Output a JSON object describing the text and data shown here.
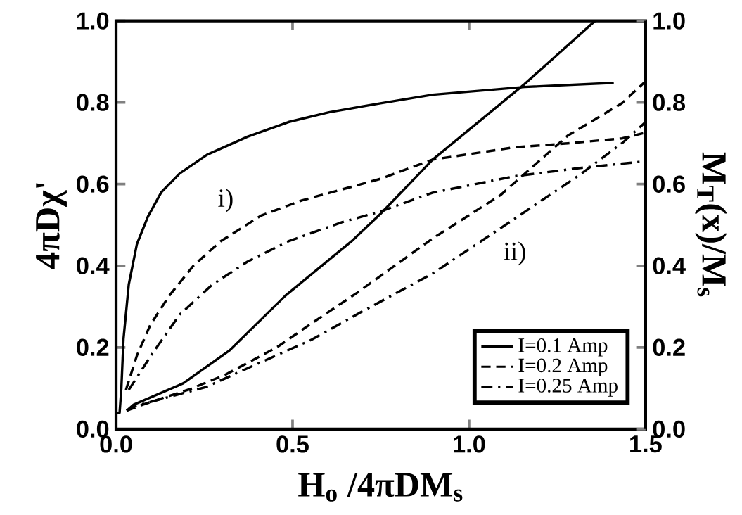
{
  "chart_data": {
    "type": "line",
    "xlabel": "H$_{o}$ /4πDM$_{s}$",
    "ylabel": "4πDχ'",
    "y2label": "M$_{T}$(x)/M$_{s}$",
    "xlim": [
      0,
      1.5
    ],
    "ylim": [
      0,
      1
    ],
    "y2lim": [
      0,
      1
    ],
    "xticks": [
      {
        "value": 0,
        "label": "0.0"
      },
      0.5,
      {
        "value": 1,
        "label": "1.0"
      },
      1.5
    ],
    "yticks": [
      {
        "value": 0,
        "label": "0.0"
      },
      0.2,
      0.4,
      0.6,
      0.8,
      {
        "value": 1,
        "label": "1.0"
      }
    ],
    "y2ticks": [
      {
        "value": 0,
        "label": "0.0"
      },
      0.2,
      0.4,
      0.6,
      0.8,
      {
        "value": 1,
        "label": "1.0"
      }
    ],
    "legend": "bottom right",
    "grid": false,
    "marker": "none",
    "annotations": [
      "i)",
      "ii)"
    ],
    "series": [
      {
        "name": "I=0.1 Amp",
        "color": "#000000",
        "line_style": "solid",
        "x": [
          0,
          0.01,
          0.015,
          0.021,
          0.036,
          0.059,
          0.09,
          0.128,
          0.18,
          0.258,
          0.372,
          0.488,
          0.603,
          0.749,
          0.897,
          1.157,
          1.41
        ],
        "values": [
          0.04,
          0.04,
          0.1,
          0.22,
          0.354,
          0.453,
          0.52,
          0.58,
          0.626,
          0.672,
          0.716,
          0.752,
          0.776,
          0.798,
          0.819,
          0.838,
          0.848
        ]
      },
      {
        "name": "I=0.2 Amp",
        "color": "#000000",
        "line_style": "dashed",
        "x": [
          0.028,
          0.059,
          0.097,
          0.151,
          0.219,
          0.296,
          0.411,
          0.526,
          0.749,
          0.897,
          1.127,
          1.28,
          1.433,
          1.5
        ],
        "values": [
          0.096,
          0.18,
          0.255,
          0.327,
          0.4,
          0.46,
          0.523,
          0.56,
          0.613,
          0.66,
          0.69,
          0.7,
          0.712,
          0.726
        ]
      },
      {
        "name": "I=0.25 Amp",
        "color": "#000000",
        "line_style": "dashdot",
        "x": [
          0.036,
          0.105,
          0.181,
          0.273,
          0.372,
          0.488,
          0.641,
          0.749,
          0.897,
          1.127,
          1.319,
          1.5
        ],
        "values": [
          0.096,
          0.188,
          0.281,
          0.354,
          0.41,
          0.46,
          0.507,
          0.533,
          0.579,
          0.619,
          0.64,
          0.656
        ]
      },
      {
        "color": "#000000",
        "line_style": "solid",
        "axis": "y2",
        "x": [
          0.03,
          0.05,
          0.19,
          0.322,
          0.48,
          0.667,
          0.749,
          0.897,
          1.157,
          1.357
        ],
        "values": [
          0.045,
          0.06,
          0.112,
          0.193,
          0.327,
          0.46,
          0.527,
          0.66,
          0.845,
          1.0
        ]
      },
      {
        "color": "#000000",
        "line_style": "dashed",
        "axis": "y2",
        "x": [
          0.03,
          0.076,
          0.21,
          0.309,
          0.455,
          0.554,
          0.683,
          0.897,
          1.089,
          1.28,
          1.433,
          1.5
        ],
        "values": [
          0.045,
          0.06,
          0.098,
          0.133,
          0.2,
          0.259,
          0.334,
          0.467,
          0.573,
          0.719,
          0.798,
          0.852
        ]
      },
      {
        "color": "#000000",
        "line_style": "dashdot",
        "axis": "y2",
        "x": [
          0.03,
          0.056,
          0.255,
          0.388,
          0.554,
          0.697,
          0.897,
          1.127,
          1.319,
          1.433,
          1.5
        ],
        "values": [
          0.045,
          0.057,
          0.103,
          0.155,
          0.219,
          0.288,
          0.381,
          0.514,
          0.626,
          0.7,
          0.752
        ]
      }
    ]
  }
}
